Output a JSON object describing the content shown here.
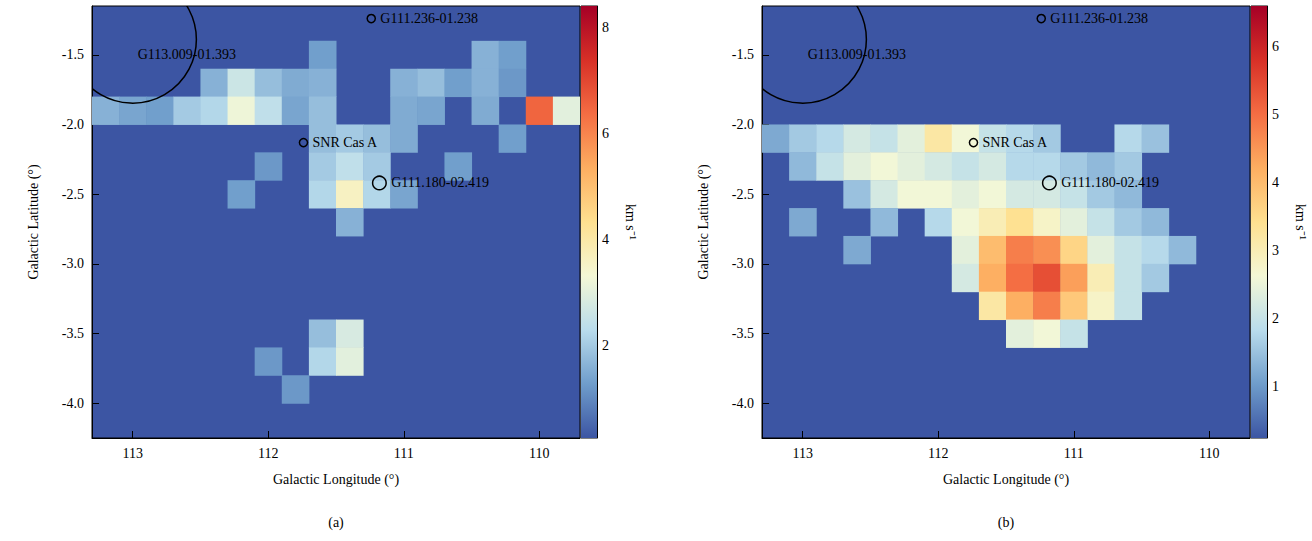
{
  "chart_data": [
    {
      "type": "heatmap",
      "panel": "(a)",
      "x_label": "Galactic Longitude (°)",
      "y_label": "Galactic Latitude (°)",
      "xlim": [
        113.3,
        109.7
      ],
      "xticks": [
        113,
        112,
        111,
        110
      ],
      "ylim": [
        -4.25,
        -1.15
      ],
      "yticks": [
        {
          "value": -4,
          "label": "-4.0"
        },
        -3.5,
        {
          "value": -3,
          "label": "-3.0"
        },
        -2.5,
        {
          "value": -2,
          "label": "-2.0"
        },
        -1.5
      ],
      "cell_size": 0.2,
      "cells": [
        [
          110.4,
          -1.5,
          1.6
        ],
        [
          110.2,
          -1.5,
          1.3
        ],
        [
          111.6,
          -1.5,
          1.3
        ],
        [
          112.4,
          -1.7,
          1.6
        ],
        [
          112.2,
          -1.7,
          2.6
        ],
        [
          112.0,
          -1.7,
          1.8
        ],
        [
          111.8,
          -1.7,
          1.5
        ],
        [
          111.6,
          -1.7,
          1.6
        ],
        [
          111.0,
          -1.7,
          1.6
        ],
        [
          110.8,
          -1.7,
          1.8
        ],
        [
          110.6,
          -1.7,
          1.3
        ],
        [
          110.4,
          -1.7,
          1.6
        ],
        [
          110.2,
          -1.7,
          1.2
        ],
        [
          113.2,
          -1.9,
          1.6
        ],
        [
          113.0,
          -1.9,
          1.4
        ],
        [
          112.8,
          -1.9,
          1.3
        ],
        [
          112.6,
          -1.9,
          2.0
        ],
        [
          112.4,
          -1.9,
          2.2
        ],
        [
          112.2,
          -1.9,
          3.2
        ],
        [
          112.0,
          -1.9,
          2.4
        ],
        [
          111.8,
          -1.9,
          1.4
        ],
        [
          111.6,
          -1.9,
          1.8
        ],
        [
          111.0,
          -1.9,
          1.5
        ],
        [
          110.8,
          -1.9,
          1.4
        ],
        [
          110.4,
          -1.9,
          1.5
        ],
        [
          110.0,
          -1.9,
          6.5
        ],
        [
          109.8,
          -1.9,
          3.0
        ],
        [
          111.6,
          -2.1,
          1.8
        ],
        [
          111.4,
          -2.1,
          2.0
        ],
        [
          111.2,
          -2.1,
          1.8
        ],
        [
          111.0,
          -2.1,
          1.5
        ],
        [
          110.2,
          -2.1,
          1.3
        ],
        [
          112.0,
          -2.3,
          1.2
        ],
        [
          111.6,
          -2.3,
          2.0
        ],
        [
          111.4,
          -2.3,
          2.4
        ],
        [
          111.2,
          -2.3,
          2.0
        ],
        [
          110.6,
          -2.3,
          1.3
        ],
        [
          112.2,
          -2.5,
          1.3
        ],
        [
          111.6,
          -2.5,
          2.2
        ],
        [
          111.4,
          -2.5,
          3.6
        ],
        [
          111.2,
          -2.5,
          2.2
        ],
        [
          111.0,
          -2.5,
          1.4
        ],
        [
          111.4,
          -2.7,
          1.6
        ],
        [
          111.6,
          -3.5,
          1.8
        ],
        [
          111.4,
          -3.5,
          2.8
        ],
        [
          112.0,
          -3.7,
          1.2
        ],
        [
          111.6,
          -3.7,
          2.2
        ],
        [
          111.4,
          -3.7,
          3.0
        ],
        [
          111.8,
          -3.9,
          1.2
        ]
      ],
      "colorbar": {
        "range": [
          0.25,
          8.4
        ],
        "ticks": [
          2,
          4,
          6,
          8
        ],
        "label": "km s⁻¹"
      },
      "annotations": [
        {
          "label": "G113.009-01.393",
          "l": 113.0,
          "b": -1.39,
          "radius": 0.47
        },
        {
          "label": "G111.236-01.238",
          "l": 111.24,
          "b": -1.24,
          "radius": 0.03
        },
        {
          "label": "SNR Cas A",
          "l": 111.74,
          "b": -2.13,
          "radius": 0.03
        },
        {
          "label": "G111.180-02.419",
          "l": 111.18,
          "b": -2.42,
          "radius": 0.05
        }
      ]
    },
    {
      "type": "heatmap",
      "panel": "(b)",
      "x_label": "Galactic Longitude (°)",
      "y_label": "Galactic Latitude (°)",
      "xlim": [
        113.3,
        109.7
      ],
      "xticks": [
        113,
        112,
        111,
        110
      ],
      "ylim": [
        -4.25,
        -1.15
      ],
      "yticks": [
        {
          "value": -4,
          "label": "-4.0"
        },
        -3.5,
        {
          "value": -3,
          "label": "-3.0"
        },
        -2.5,
        {
          "value": -2,
          "label": "-2.0"
        },
        -1.5
      ],
      "cell_size": 0.2,
      "cells": [
        [
          113.2,
          -2.1,
          1.2
        ],
        [
          113.0,
          -2.1,
          1.6
        ],
        [
          112.8,
          -2.1,
          1.8
        ],
        [
          112.6,
          -2.1,
          2.2
        ],
        [
          112.4,
          -2.1,
          2.0
        ],
        [
          112.2,
          -2.1,
          2.4
        ],
        [
          112.0,
          -2.1,
          3.2
        ],
        [
          111.8,
          -2.1,
          2.6
        ],
        [
          111.6,
          -2.1,
          2.0
        ],
        [
          111.4,
          -2.1,
          1.8
        ],
        [
          111.2,
          -2.1,
          1.6
        ],
        [
          110.6,
          -2.1,
          1.8
        ],
        [
          110.4,
          -2.1,
          1.5
        ],
        [
          113.0,
          -2.3,
          1.4
        ],
        [
          112.8,
          -2.3,
          2.0
        ],
        [
          112.6,
          -2.3,
          2.4
        ],
        [
          112.4,
          -2.3,
          2.6
        ],
        [
          112.2,
          -2.3,
          2.4
        ],
        [
          112.0,
          -2.3,
          2.2
        ],
        [
          111.8,
          -2.3,
          2.0
        ],
        [
          111.6,
          -2.3,
          2.2
        ],
        [
          111.4,
          -2.3,
          1.8
        ],
        [
          111.2,
          -2.3,
          1.8
        ],
        [
          111.0,
          -2.3,
          1.6
        ],
        [
          110.8,
          -2.3,
          1.4
        ],
        [
          110.6,
          -2.3,
          1.6
        ],
        [
          112.6,
          -2.5,
          1.5
        ],
        [
          112.4,
          -2.5,
          2.2
        ],
        [
          112.2,
          -2.5,
          2.6
        ],
        [
          112.0,
          -2.5,
          2.6
        ],
        [
          111.8,
          -2.5,
          2.4
        ],
        [
          111.6,
          -2.5,
          2.6
        ],
        [
          111.4,
          -2.5,
          2.2
        ],
        [
          111.2,
          -2.5,
          2.2
        ],
        [
          111.0,
          -2.5,
          2.0
        ],
        [
          110.8,
          -2.5,
          1.6
        ],
        [
          110.6,
          -2.5,
          1.4
        ],
        [
          113.0,
          -2.7,
          1.2
        ],
        [
          112.4,
          -2.7,
          1.4
        ],
        [
          112.0,
          -2.7,
          1.8
        ],
        [
          111.8,
          -2.7,
          2.6
        ],
        [
          111.6,
          -2.7,
          3.0
        ],
        [
          111.4,
          -2.7,
          3.4
        ],
        [
          111.2,
          -2.7,
          2.8
        ],
        [
          111.0,
          -2.7,
          2.4
        ],
        [
          110.8,
          -2.7,
          2.0
        ],
        [
          110.6,
          -2.7,
          1.6
        ],
        [
          110.4,
          -2.7,
          1.4
        ],
        [
          112.6,
          -2.9,
          1.2
        ],
        [
          111.8,
          -2.9,
          2.4
        ],
        [
          111.6,
          -2.9,
          4.0
        ],
        [
          111.4,
          -2.9,
          4.8
        ],
        [
          111.2,
          -2.9,
          4.6
        ],
        [
          111.0,
          -2.9,
          3.6
        ],
        [
          110.8,
          -2.9,
          2.4
        ],
        [
          110.6,
          -2.9,
          2.0
        ],
        [
          110.4,
          -2.9,
          1.8
        ],
        [
          110.2,
          -2.9,
          1.4
        ],
        [
          111.8,
          -3.1,
          2.2
        ],
        [
          111.6,
          -3.1,
          4.2
        ],
        [
          111.4,
          -3.1,
          5.0
        ],
        [
          111.2,
          -3.1,
          5.4
        ],
        [
          111.0,
          -3.1,
          4.4
        ],
        [
          110.8,
          -3.1,
          3.0
        ],
        [
          110.6,
          -3.1,
          2.0
        ],
        [
          110.4,
          -3.1,
          1.6
        ],
        [
          111.6,
          -3.3,
          3.2
        ],
        [
          111.4,
          -3.3,
          4.2
        ],
        [
          111.2,
          -3.3,
          4.8
        ],
        [
          111.0,
          -3.3,
          3.8
        ],
        [
          110.8,
          -3.3,
          2.8
        ],
        [
          110.6,
          -3.3,
          2.0
        ],
        [
          111.4,
          -3.5,
          2.4
        ],
        [
          111.2,
          -3.5,
          2.6
        ],
        [
          111.0,
          -3.5,
          2.0
        ]
      ],
      "colorbar": {
        "range": [
          0.25,
          6.6
        ],
        "ticks": [
          1,
          2,
          3,
          4,
          5,
          6
        ],
        "label": "km s⁻¹"
      },
      "annotations": [
        {
          "label": "G113.009-01.393",
          "l": 113.0,
          "b": -1.39,
          "radius": 0.47
        },
        {
          "label": "G111.236-01.238",
          "l": 111.24,
          "b": -1.24,
          "radius": 0.03
        },
        {
          "label": "SNR Cas A",
          "l": 111.74,
          "b": -2.13,
          "radius": 0.03
        },
        {
          "label": "G111.180-02.419",
          "l": 111.18,
          "b": -2.42,
          "radius": 0.05
        }
      ]
    }
  ]
}
